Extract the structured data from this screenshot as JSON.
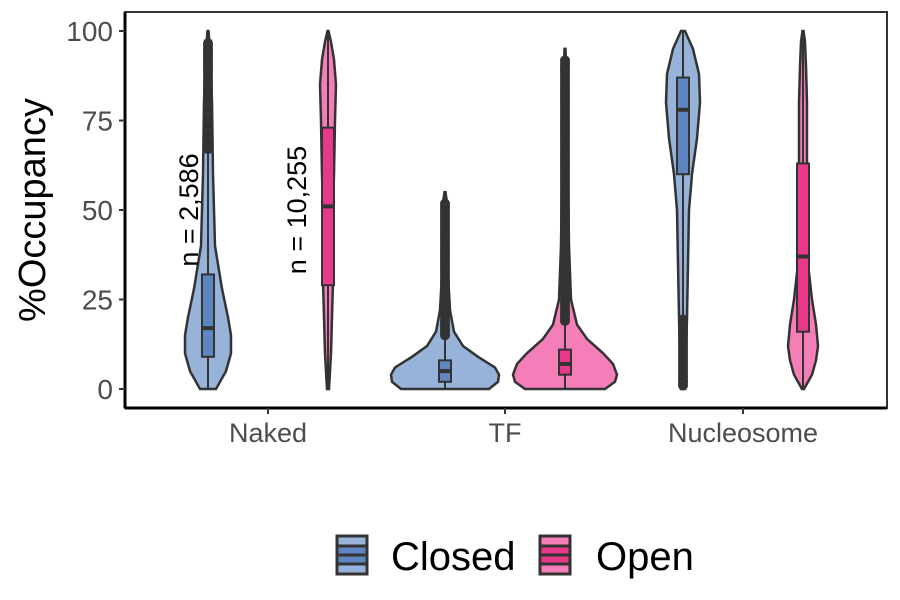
{
  "chart_data": {
    "type": "violin",
    "title": "",
    "xlabel": "",
    "ylabel": "%Occupancy",
    "ylim": [
      0,
      100
    ],
    "yticks": [
      0,
      25,
      50,
      75,
      100
    ],
    "grid": false,
    "legend_position": "bottom",
    "categories": [
      "Naked",
      "TF",
      "Nucleosome"
    ],
    "series": [
      {
        "name": "Closed",
        "color": "#5E86C1",
        "fill": "#97B3D9",
        "boxes": [
          {
            "category": "Naked",
            "min": 0,
            "q1": 9,
            "median": 17,
            "q3": 32,
            "max": 100,
            "whisker_high": 67
          },
          {
            "category": "TF",
            "min": 0,
            "q1": 2,
            "median": 5,
            "q3": 8,
            "max": 55,
            "whisker_high": 15
          },
          {
            "category": "Nucleosome",
            "min": 1,
            "q1": 60,
            "median": 78,
            "q3": 87,
            "max": 100,
            "whisker_low": 20
          }
        ]
      },
      {
        "name": "Open",
        "color": "#E8388A",
        "fill": "#F47EB8",
        "boxes": [
          {
            "category": "Naked",
            "min": 0,
            "q1": 29,
            "median": 51,
            "q3": 73,
            "max": 100
          },
          {
            "category": "TF",
            "min": 0,
            "q1": 4,
            "median": 7,
            "q3": 11,
            "max": 95,
            "whisker_high": 19
          },
          {
            "category": "Nucleosome",
            "min": 0,
            "q1": 16,
            "median": 37,
            "q3": 63,
            "max": 100
          }
        ]
      }
    ],
    "annotations": [
      "n =  2,586",
      "n =  10,255"
    ]
  }
}
